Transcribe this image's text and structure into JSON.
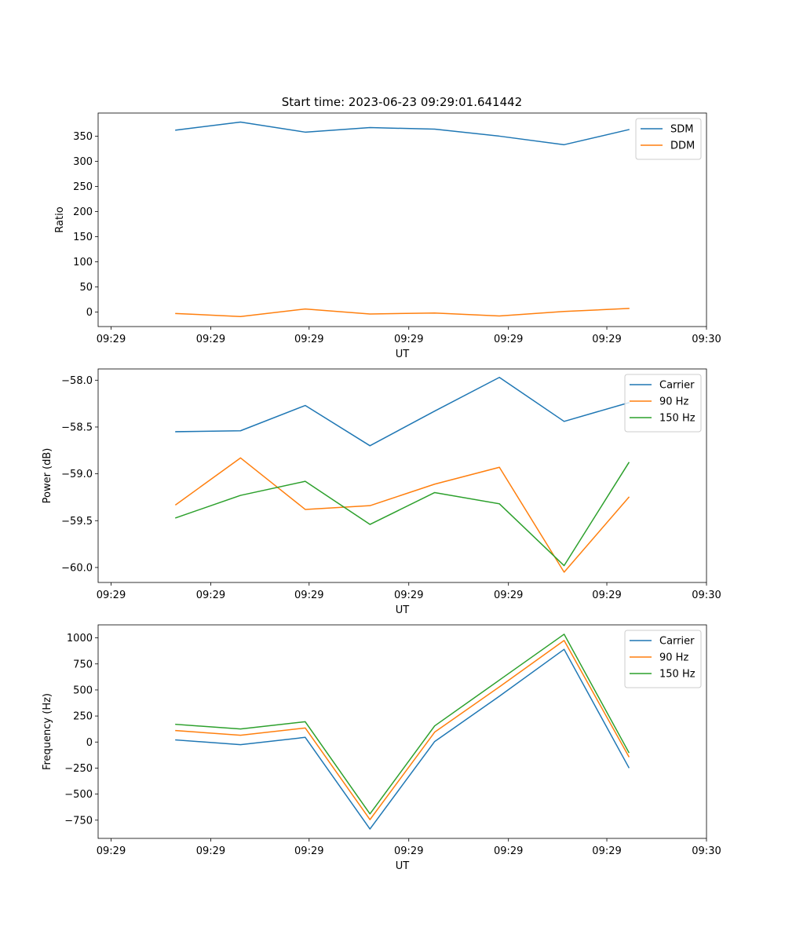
{
  "title": "Start time: 2023-06-23 09:29:01.641442",
  "chart_data": [
    {
      "type": "line",
      "title": "Start time: 2023-06-23 09:29:01.641442",
      "xlabel": "UT",
      "ylabel": "Ratio",
      "x": [
        0.5,
        1.0,
        1.5,
        2.0,
        2.5,
        3.0,
        3.5,
        4.0
      ],
      "xlim": [
        -0.1,
        4.6
      ],
      "x_ticks": [
        0,
        0.77,
        1.53,
        2.3,
        3.07,
        3.83,
        4.6
      ],
      "x_tick_labels": [
        "09:29",
        "09:29",
        "09:29",
        "09:29",
        "09:29",
        "09:29",
        "09:30"
      ],
      "ylim": [
        -29,
        396
      ],
      "y_ticks": [
        0,
        50,
        100,
        150,
        200,
        250,
        300,
        350
      ],
      "y_tick_labels": [
        "0",
        "50",
        "100",
        "150",
        "200",
        "250",
        "300",
        "350"
      ],
      "legend": "upper-right",
      "grid": false,
      "series": [
        {
          "name": "SDM",
          "color": "#1f77b4",
          "values": [
            362,
            378,
            358,
            367,
            364,
            350,
            333,
            363
          ]
        },
        {
          "name": "DDM",
          "color": "#ff7f0e",
          "values": [
            -3,
            -9,
            6,
            -4,
            -2,
            -8,
            1,
            7
          ]
        }
      ]
    },
    {
      "type": "line",
      "title": "",
      "xlabel": "UT",
      "ylabel": "Power (dB)",
      "x": [
        0.5,
        1.0,
        1.5,
        2.0,
        2.5,
        3.0,
        3.5,
        4.0
      ],
      "xlim": [
        -0.1,
        4.6
      ],
      "x_ticks": [
        0,
        0.77,
        1.53,
        2.3,
        3.07,
        3.83,
        4.6
      ],
      "x_tick_labels": [
        "09:29",
        "09:29",
        "09:29",
        "09:29",
        "09:29",
        "09:29",
        "09:30"
      ],
      "ylim": [
        -60.16,
        -57.88
      ],
      "y_ticks": [
        -60.0,
        -59.5,
        -59.0,
        -58.5,
        -58.0
      ],
      "y_tick_labels": [
        "−60.0",
        "−59.5",
        "−59.0",
        "−58.5",
        "−58.0"
      ],
      "legend": "upper-right",
      "grid": false,
      "series": [
        {
          "name": "Carrier",
          "color": "#1f77b4",
          "values": [
            -58.55,
            -58.54,
            -58.27,
            -58.7,
            -58.33,
            -57.97,
            -58.44,
            -58.24
          ]
        },
        {
          "name": "90 Hz",
          "color": "#ff7f0e",
          "values": [
            -59.33,
            -58.83,
            -59.38,
            -59.34,
            -59.11,
            -58.93,
            -60.05,
            -59.25
          ]
        },
        {
          "name": "150 Hz",
          "color": "#2ca02c",
          "values": [
            -59.47,
            -59.23,
            -59.08,
            -59.54,
            -59.2,
            -59.32,
            -59.98,
            -58.88
          ]
        }
      ]
    },
    {
      "type": "line",
      "title": "",
      "xlabel": "UT",
      "ylabel": "Frequency (Hz)",
      "x": [
        0.5,
        1.0,
        1.5,
        2.0,
        2.5,
        3.0,
        3.5,
        4.0
      ],
      "xlim": [
        -0.1,
        4.6
      ],
      "x_ticks": [
        0,
        0.77,
        1.53,
        2.3,
        3.07,
        3.83,
        4.6
      ],
      "x_tick_labels": [
        "09:29",
        "09:29",
        "09:29",
        "09:29",
        "09:29",
        "09:29",
        "09:30"
      ],
      "ylim": [
        -925,
        1125
      ],
      "y_ticks": [
        -750,
        -500,
        -250,
        0,
        250,
        500,
        750,
        1000
      ],
      "y_tick_labels": [
        "−750",
        "−500",
        "−250",
        "0",
        "250",
        "500",
        "750",
        "1000"
      ],
      "legend": "upper-right",
      "grid": false,
      "series": [
        {
          "name": "Carrier",
          "color": "#1f77b4",
          "values": [
            20,
            -25,
            45,
            -835,
            5,
            440,
            890,
            -245
          ]
        },
        {
          "name": "90 Hz",
          "color": "#ff7f0e",
          "values": [
            110,
            65,
            135,
            -745,
            95,
            530,
            975,
            -140
          ]
        },
        {
          "name": "150 Hz",
          "color": "#2ca02c",
          "values": [
            170,
            125,
            195,
            -690,
            155,
            595,
            1035,
            -100
          ]
        }
      ]
    }
  ]
}
